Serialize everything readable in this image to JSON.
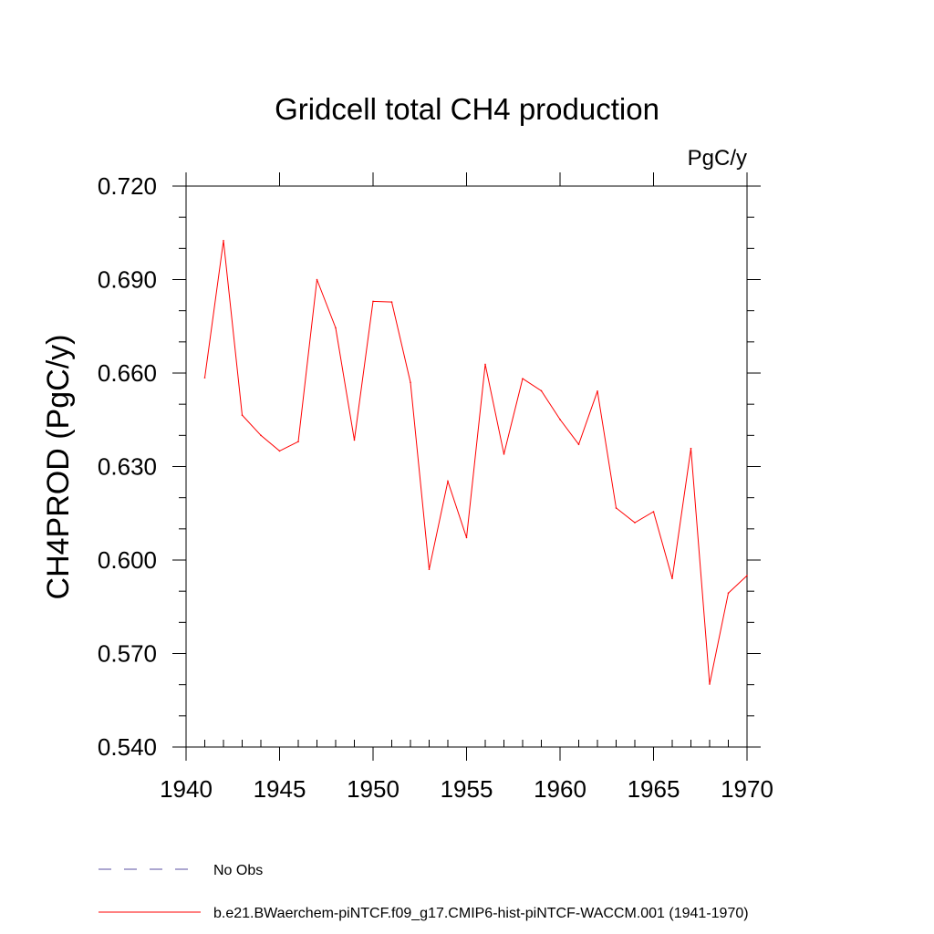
{
  "chart_data": {
    "type": "line",
    "title": "Gridcell total CH4 production",
    "units": "PgC/y",
    "ylabel": "CH4PROD  (PgC/y)",
    "xlabel": "",
    "xlim": [
      1940,
      1970
    ],
    "ylim": [
      0.54,
      0.72
    ],
    "xticks": [
      "1940",
      "1945",
      "1950",
      "1955",
      "1960",
      "1965",
      "1970"
    ],
    "yticks": [
      "0.720",
      "0.690",
      "0.660",
      "0.630",
      "0.600",
      "0.570",
      "0.540"
    ],
    "grid": false,
    "legend_position": "bottom-left",
    "series": [
      {
        "name": "No Obs",
        "color": "#5a4fa0",
        "dash": "dashed",
        "x": [],
        "values": []
      },
      {
        "name": "b.e21.BWaerchem-piNTCF.f09_g17.CMIP6-hist-piNTCF-WACCM.001 (1941-1970)",
        "color": "#ff0000",
        "dash": "solid",
        "x": [
          1941,
          1942,
          1943,
          1944,
          1945,
          1946,
          1947,
          1948,
          1949,
          1950,
          1951,
          1952,
          1953,
          1954,
          1955,
          1956,
          1957,
          1958,
          1959,
          1960,
          1961,
          1962,
          1963,
          1964,
          1965,
          1966,
          1967,
          1968,
          1969,
          1970
        ],
        "values": [
          0.6585,
          0.7025,
          0.6465,
          0.64,
          0.635,
          0.638,
          0.69,
          0.6745,
          0.6385,
          0.683,
          0.6828,
          0.657,
          0.597,
          0.6253,
          0.6072,
          0.6628,
          0.634,
          0.6582,
          0.6543,
          0.6451,
          0.6371,
          0.6542,
          0.6167,
          0.612,
          0.6155,
          0.5941,
          0.6358,
          0.5602,
          0.5894,
          0.595
        ]
      }
    ]
  }
}
